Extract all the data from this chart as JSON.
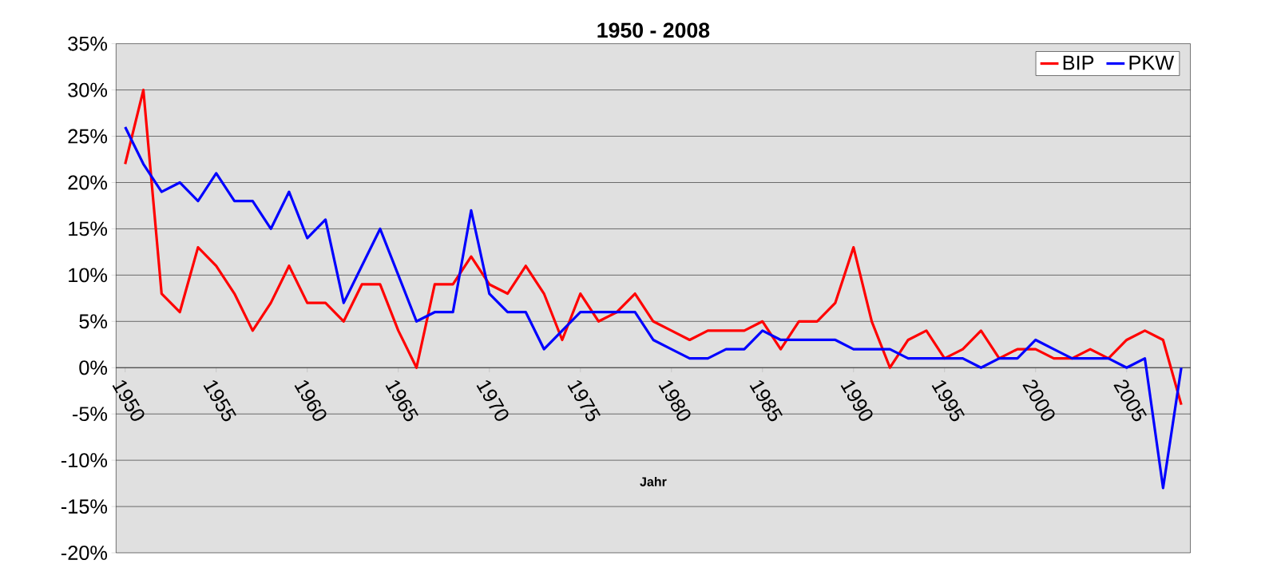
{
  "chart_data": {
    "type": "line",
    "title": "1950 - 2008",
    "xlabel": "Jahr",
    "categories": [
      "1950",
      null,
      null,
      null,
      null,
      "1955",
      null,
      null,
      null,
      null,
      "1960",
      null,
      null,
      null,
      null,
      "1965",
      null,
      null,
      null,
      null,
      "1970",
      null,
      null,
      null,
      null,
      "1975",
      null,
      null,
      null,
      null,
      "1980",
      null,
      null,
      null,
      null,
      "1985",
      null,
      null,
      null,
      null,
      "1990",
      null,
      null,
      null,
      null,
      "1995",
      null,
      null,
      null,
      null,
      "2000",
      null,
      null,
      null,
      null,
      "2005",
      null,
      null,
      null
    ],
    "series": [
      {
        "name": "BIP",
        "color": "#ff0000",
        "values": [
          22,
          30,
          8,
          6,
          13,
          11,
          8,
          4,
          7,
          11,
          7,
          7,
          5,
          9,
          9,
          4,
          0,
          9,
          9,
          12,
          9,
          8,
          11,
          8,
          3,
          8,
          5,
          6,
          8,
          5,
          4,
          3,
          4,
          4,
          4,
          5,
          2,
          5,
          5,
          7,
          13,
          5,
          0,
          3,
          4,
          1,
          2,
          4,
          1,
          2,
          2,
          1,
          1,
          2,
          1,
          3,
          4,
          3,
          -4
        ]
      },
      {
        "name": "PKW",
        "color": "#0000ff",
        "values": [
          26,
          22,
          19,
          20,
          18,
          21,
          18,
          18,
          15,
          19,
          14,
          16,
          7,
          11,
          15,
          10,
          5,
          6,
          6,
          17,
          8,
          6,
          6,
          2,
          4,
          6,
          6,
          6,
          6,
          3,
          2,
          1,
          1,
          2,
          2,
          4,
          3,
          3,
          3,
          3,
          2,
          2,
          2,
          1,
          1,
          1,
          1,
          0,
          1,
          1,
          3,
          2,
          1,
          1,
          1,
          0,
          1,
          -13,
          0
        ]
      }
    ],
    "ylim": [
      -20,
      35
    ],
    "yticks": [
      {
        "value": -20,
        "label": "-20%"
      },
      {
        "value": -15,
        "label": "-15%"
      },
      {
        "value": -10,
        "label": "-10%"
      },
      {
        "value": -5,
        "label": "-5%"
      },
      {
        "value": 0,
        "label": "0%"
      },
      {
        "value": 5,
        "label": "5%"
      },
      {
        "value": 10,
        "label": "10%"
      },
      {
        "value": 15,
        "label": "15%"
      },
      {
        "value": 20,
        "label": "20%"
      },
      {
        "value": 25,
        "label": "25%"
      },
      {
        "value": 30,
        "label": "30%"
      },
      {
        "value": 35,
        "label": "35%"
      }
    ],
    "grid": "y",
    "legend": "top right",
    "marker": "none",
    "line_style": "solid"
  }
}
